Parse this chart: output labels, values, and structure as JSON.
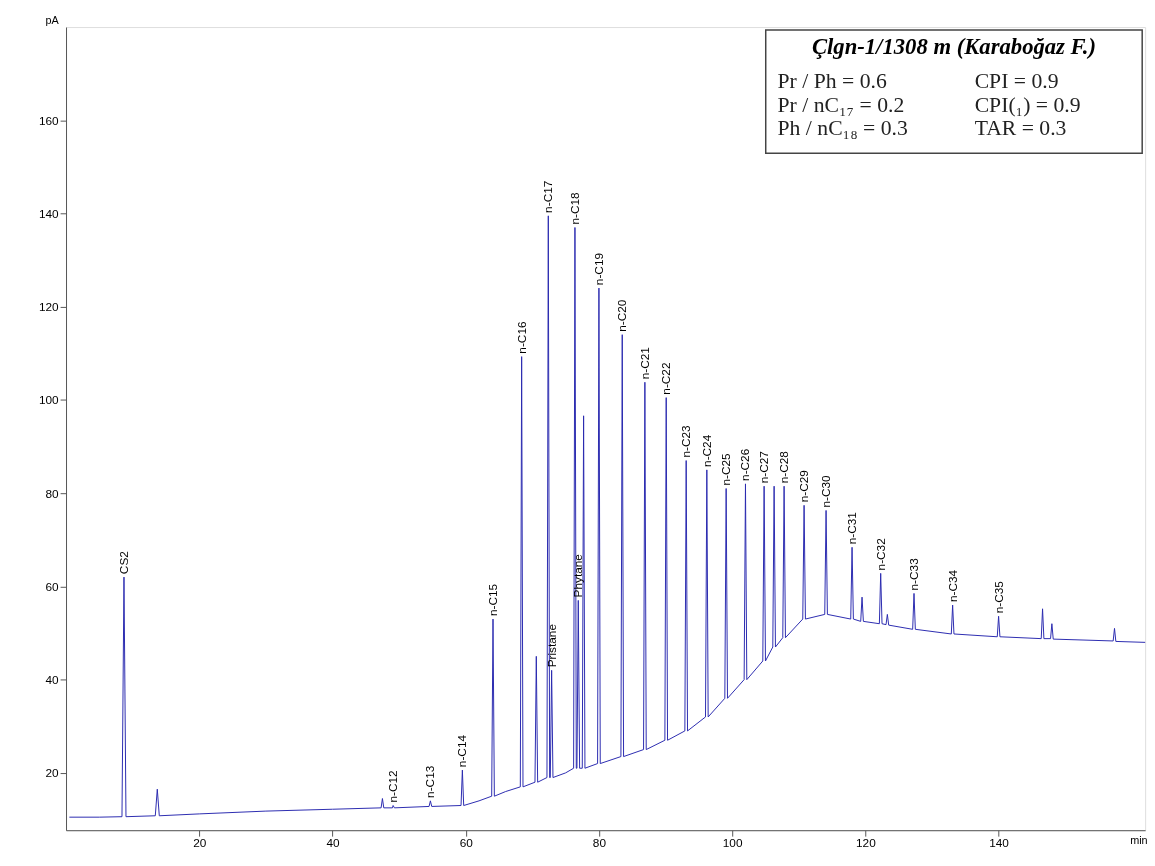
{
  "chart_data": {
    "type": "line",
    "title": "Çlgn-1/1308 m (Karaboğaz F.)",
    "xlabel": "min",
    "ylabel": "pA",
    "xlim": [
      0,
      162
    ],
    "ylim": [
      7.7,
      180
    ],
    "xticks": [
      20,
      40,
      60,
      80,
      100,
      120,
      140
    ],
    "yticks": [
      20,
      40,
      60,
      80,
      100,
      120,
      140,
      160
    ],
    "grid": false,
    "marker": "none",
    "line_style": "solid",
    "series": [
      {
        "color": "#2b2bb0",
        "x": [
          0.5,
          5,
          8.4,
          8.7,
          9.0,
          13.4,
          13.7,
          14.0,
          20,
          30,
          40,
          47.3,
          47.5,
          47.7,
          49.0,
          49.1,
          49.3,
          54.5,
          54.7,
          54.9,
          59.3,
          59.5,
          59.7,
          62,
          63.9,
          64.1,
          64.3,
          66,
          68.2,
          68.4,
          68.6,
          70.4,
          70.6,
          70.8,
          72.2,
          72.4,
          72.6,
          72.7,
          72.9,
          73.1,
          75,
          76.2,
          76.4,
          76.6,
          76.7,
          76.9,
          77.1,
          77.5,
          77.7,
          77.9,
          79.8,
          80.0,
          80.2,
          83.3,
          83.5,
          83.7,
          86.7,
          86.9,
          87.1,
          89.9,
          90.1,
          90.3,
          92.9,
          93.1,
          93.3,
          96.0,
          96.2,
          96.4,
          98.9,
          99.1,
          99.3,
          101.8,
          102,
          102.2,
          104.6,
          104.8,
          105,
          106.1,
          106.3,
          106.5,
          107.6,
          107.8,
          108,
          110.6,
          110.8,
          111,
          113.9,
          114.1,
          114.3,
          117.8,
          118,
          118.2,
          119.3,
          119.5,
          119.7,
          122.1,
          122.3,
          122.5,
          123.1,
          123.3,
          123.5,
          127.1,
          127.3,
          127.5,
          132.9,
          133.1,
          133.3,
          139.8,
          140,
          140.2,
          146.4,
          146.6,
          146.8,
          147.8,
          148,
          148.2,
          157.2,
          157.4,
          157.6,
          162
        ],
        "values": [
          10.5,
          10.5,
          10.6,
          62,
          10.6,
          10.8,
          16.5,
          10.8,
          11.2,
          11.8,
          12.2,
          12.5,
          14.5,
          12.5,
          12.5,
          13,
          12.5,
          12.8,
          14,
          12.8,
          13,
          20.6,
          13,
          14,
          15,
          53,
          15,
          16,
          17,
          109.3,
          17,
          18,
          45,
          18,
          19,
          139.5,
          19,
          19,
          42,
          19,
          20,
          21,
          137,
          21,
          21,
          57,
          21,
          21,
          96.6,
          21,
          22,
          124,
          22,
          23.5,
          114,
          23.5,
          25,
          103.8,
          25,
          27,
          100.5,
          27,
          29,
          87,
          29,
          32,
          85,
          32,
          36,
          81,
          36,
          40,
          82,
          40,
          44,
          81.5,
          44,
          47,
          81.5,
          47,
          49,
          81.5,
          49,
          53,
          77.4,
          53,
          54,
          76.3,
          54,
          53,
          68.4,
          53,
          52.5,
          57.7,
          52.5,
          52,
          62.8,
          52,
          51.8,
          54,
          51.7,
          50.8,
          58.5,
          50.8,
          49.8,
          56,
          49.8,
          49.2,
          53.6,
          49.2,
          48.8,
          55.2,
          48.8,
          48.8,
          52,
          48.7,
          48.3,
          51,
          48.2,
          48
        ]
      }
    ],
    "annotations": [
      {
        "text": "CS2",
        "x": 8.7,
        "y": 62
      },
      {
        "text": "n-C12",
        "x": 49.1,
        "y": 13
      },
      {
        "text": "n-C13",
        "x": 54.7,
        "y": 14
      },
      {
        "text": "n-C14",
        "x": 59.5,
        "y": 20.6
      },
      {
        "text": "n-C15",
        "x": 64.1,
        "y": 53
      },
      {
        "text": "n-C16",
        "x": 68.4,
        "y": 109.3
      },
      {
        "text": "n-C17",
        "x": 72.4,
        "y": 139.5
      },
      {
        "text": "Pristane",
        "x": 72.9,
        "y": 42
      },
      {
        "text": "n-C18",
        "x": 76.4,
        "y": 137
      },
      {
        "text": "Phytane",
        "x": 76.9,
        "y": 57
      },
      {
        "text": "n-C19",
        "x": 80.0,
        "y": 124
      },
      {
        "text": "n-C20",
        "x": 83.5,
        "y": 114
      },
      {
        "text": "n-C21",
        "x": 86.9,
        "y": 103.8
      },
      {
        "text": "n-C22",
        "x": 90.1,
        "y": 100.5
      },
      {
        "text": "n-C23",
        "x": 93.1,
        "y": 87
      },
      {
        "text": "n-C24",
        "x": 96.2,
        "y": 85
      },
      {
        "text": "n-C25",
        "x": 99.1,
        "y": 81
      },
      {
        "text": "n-C26",
        "x": 102,
        "y": 82
      },
      {
        "text": "n-C27",
        "x": 104.8,
        "y": 81.5
      },
      {
        "text": "n-C28",
        "x": 107.8,
        "y": 81.5
      },
      {
        "text": "n-C29",
        "x": 110.8,
        "y": 77.4
      },
      {
        "text": "n-C30",
        "x": 114.1,
        "y": 76.3
      },
      {
        "text": "n-C31",
        "x": 118,
        "y": 68.4
      },
      {
        "text": "n-C32",
        "x": 122.3,
        "y": 62.8
      },
      {
        "text": "n-C33",
        "x": 127.3,
        "y": 58.5
      },
      {
        "text": "n-C34",
        "x": 133.1,
        "y": 56
      },
      {
        "text": "n-C35",
        "x": 140,
        "y": 53.6
      },
      "Pr / Ph = 0.6",
      "CPI = 0.9",
      "Pr / nC₁₇ = 0.2",
      "CPI(₁) = 0.9",
      "Ph / nC₁₈ = 0.3",
      "TAR = 0.3"
    ]
  }
}
